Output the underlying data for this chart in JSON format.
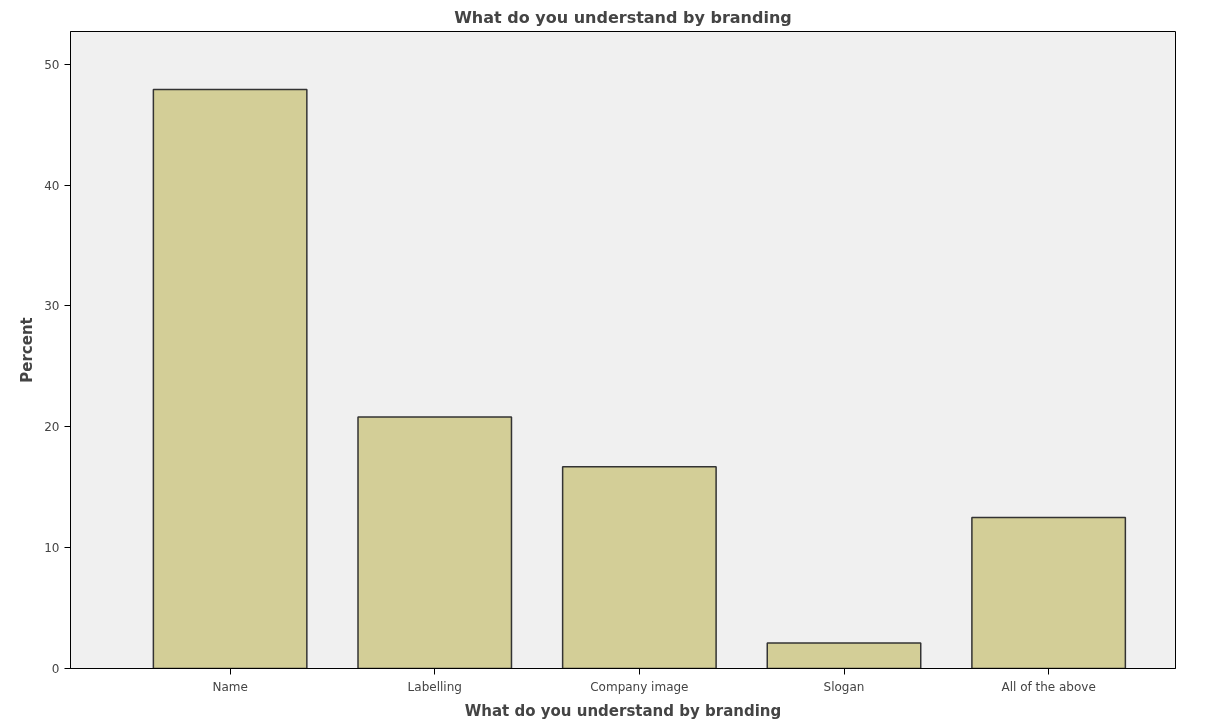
{
  "chart_data": {
    "type": "bar",
    "title": "What do you understand by branding",
    "xlabel": "What do you understand by branding",
    "ylabel": "Percent",
    "categories": [
      "Name",
      "Labelling",
      "Company image",
      "Slogan",
      "All of the above"
    ],
    "values": [
      47.9,
      20.8,
      16.7,
      2.1,
      12.5
    ],
    "color": "#d3ce97",
    "ylim": [
      0,
      52.7
    ],
    "yticks": [
      0,
      10,
      20,
      30,
      40,
      50
    ],
    "grid": false
  }
}
